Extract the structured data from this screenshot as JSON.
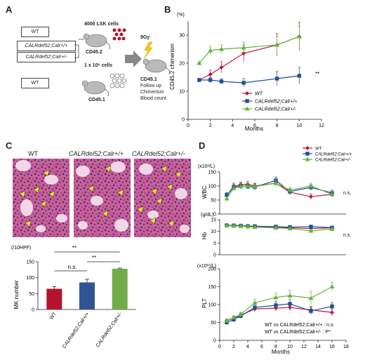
{
  "panels": {
    "a": {
      "letter": "A"
    },
    "b": {
      "letter": "B"
    },
    "c": {
      "letter": "C"
    },
    "d": {
      "letter": "D"
    }
  },
  "schematic": {
    "wt_top": "WT",
    "genotype_wt_pos": "CALRdel52;Calr+/+",
    "genotype_wt_het": "CALRdel52;Calr+/-",
    "lsk_cells": "4000 LSK cells",
    "donor_label": "CD45.2",
    "wt_bottom": "WT",
    "bm_cells": "1 x 10⁶ cells",
    "competitor_label": "CD45.1",
    "irradiation": "9Gy",
    "recipient_label": "CD45.1",
    "followup_lines": [
      "Follow up",
      "Chimerism",
      "Blood count"
    ]
  },
  "chimerism": {
    "unit": "(%)",
    "ylabel": "CD45.2 chimerism",
    "xlabel": "Months",
    "significance": "**"
  },
  "histology": {
    "titles": [
      "WT",
      "CALRdel52;Calr+/+",
      "CALRdel52;Calr+/-"
    ]
  },
  "mk_chart": {
    "unit": "(/10HPF)",
    "ylabel": "MK number",
    "sig_ns": "n.s.",
    "sig_1": "**",
    "sig_2": "**"
  },
  "blood_counts": {
    "xlabel": "Months",
    "wbc_unit": "(x10³/L)",
    "wbc_label": "WBC",
    "wbc_sig": "n.s.",
    "hb_unit": "(g/dL)",
    "hb_label": "Hb",
    "hb_sig": "n.s.",
    "plt_unit": "(x10¹⁰/L)",
    "plt_label": "PLT",
    "stat_line1": "WT vs CALRdel52;Calr+/+ : n.s.",
    "stat_line2": "WT vs CALRdel52;Calr+/- : P*"
  },
  "chart_data": [
    {
      "id": "B",
      "type": "line",
      "xlabel": "Months",
      "ylabel": "CD45.2 chimerism",
      "xlim": [
        0,
        12
      ],
      "ylim": [
        0,
        35
      ],
      "xticks": [
        0,
        2,
        4,
        6,
        8,
        10,
        12
      ],
      "yticks": [
        0,
        10,
        20,
        30
      ],
      "legend_position": "bottom-right",
      "series": [
        {
          "name": "WT",
          "color": "#c0143c",
          "marker": "diamond",
          "x": [
            1,
            2,
            3,
            5,
            8,
            10
          ],
          "values": [
            14,
            16,
            18.5,
            23.5,
            26.5,
            29.5
          ],
          "err": [
            0.5,
            1.5,
            2,
            3,
            4,
            5
          ]
        },
        {
          "name": "CALRdel52;Calr+/+",
          "color": "#1f4e96",
          "marker": "square",
          "x": [
            1,
            2,
            3,
            5,
            8,
            10
          ],
          "values": [
            14,
            14,
            13.5,
            13,
            14.5,
            15.5
          ],
          "err": [
            0.5,
            1,
            1,
            1.5,
            2.5,
            3
          ]
        },
        {
          "name": "CALRdel52;Calr+/-",
          "color": "#5fb53a",
          "marker": "triangle",
          "x": [
            1,
            2,
            3,
            5,
            8,
            10
          ],
          "values": [
            20,
            24.5,
            25,
            25.5,
            26.5,
            29.5
          ],
          "err": [
            0.5,
            1.5,
            1.5,
            2,
            3,
            3.5
          ]
        }
      ]
    },
    {
      "id": "C",
      "type": "bar",
      "ylabel": "MK number",
      "ylim": [
        0,
        150
      ],
      "yticks": [
        0,
        50,
        100,
        150
      ],
      "categories": [
        "WT",
        "CALRdel52;Calr+/+",
        "CALRdel52;Calr+/-"
      ],
      "values": [
        65,
        85,
        128
      ],
      "err": [
        7,
        10,
        2
      ],
      "colors": [
        "#b5122d",
        "#2f5597",
        "#70ad47"
      ]
    },
    {
      "id": "D-WBC",
      "type": "line",
      "ylabel": "WBC",
      "xlim": [
        0,
        18
      ],
      "ylim": [
        0,
        150
      ],
      "yticks": [
        0,
        50,
        100,
        150
      ],
      "series": [
        {
          "name": "WT",
          "color": "#c0143c",
          "marker": "diamond",
          "x": [
            1,
            2,
            3,
            4,
            5,
            8,
            10,
            13,
            16
          ],
          "values": [
            65,
            100,
            104,
            106,
            100,
            110,
            78,
            62,
            70
          ],
          "err": [
            8,
            10,
            10,
            10,
            10,
            12,
            10,
            10,
            10
          ]
        },
        {
          "name": "CALRdel52;Calr+/+",
          "color": "#1f4e96",
          "marker": "square",
          "x": [
            1,
            2,
            3,
            4,
            5,
            8,
            10,
            13,
            16
          ],
          "values": [
            68,
            95,
            100,
            98,
            96,
            120,
            80,
            95,
            75
          ],
          "err": [
            8,
            10,
            10,
            10,
            10,
            12,
            10,
            10,
            10
          ]
        },
        {
          "name": "CALRdel52;Calr+/-",
          "color": "#5fb53a",
          "marker": "triangle",
          "x": [
            1,
            2,
            3,
            4,
            5,
            8,
            10,
            13,
            16
          ],
          "values": [
            55,
            92,
            98,
            100,
            98,
            110,
            85,
            100,
            70
          ],
          "err": [
            8,
            10,
            10,
            10,
            10,
            12,
            10,
            10,
            10
          ]
        }
      ]
    },
    {
      "id": "D-Hb",
      "type": "line",
      "ylabel": "Hb",
      "xlim": [
        0,
        18
      ],
      "ylim": [
        0,
        15
      ],
      "yticks": [
        0,
        5,
        10,
        15
      ],
      "series": [
        {
          "name": "WT",
          "color": "#c0143c",
          "marker": "diamond",
          "x": [
            1,
            2,
            3,
            4,
            5,
            8,
            10,
            13,
            16
          ],
          "values": [
            12.5,
            12.6,
            12.4,
            12.3,
            12.0,
            11.8,
            11.5,
            11.2,
            11.5
          ],
          "err": [
            0.5,
            0.5,
            0.5,
            0.5,
            0.5,
            0.5,
            0.5,
            0.5,
            0.5
          ]
        },
        {
          "name": "CALRdel52;Calr+/+",
          "color": "#1f4e96",
          "marker": "square",
          "x": [
            1,
            2,
            3,
            4,
            5,
            8,
            10,
            13,
            16
          ],
          "values": [
            12.6,
            12.5,
            12.4,
            12.2,
            12.2,
            12.0,
            11.8,
            12.0,
            11.6
          ],
          "err": [
            0.5,
            0.5,
            0.5,
            0.5,
            0.5,
            0.5,
            0.5,
            0.5,
            0.5
          ]
        },
        {
          "name": "CALRdel52;Calr+/-",
          "color": "#5fb53a",
          "marker": "triangle",
          "x": [
            1,
            2,
            3,
            4,
            5,
            8,
            10,
            13,
            16
          ],
          "values": [
            12.4,
            12.3,
            12.2,
            12.0,
            11.8,
            11.5,
            11.2,
            10.2,
            11.0
          ],
          "err": [
            0.5,
            0.5,
            0.5,
            0.5,
            0.5,
            0.5,
            0.5,
            0.8,
            0.5
          ]
        }
      ]
    },
    {
      "id": "D-PLT",
      "type": "line",
      "ylabel": "PLT",
      "xlabel": "Months",
      "xlim": [
        0,
        18
      ],
      "ylim": [
        0,
        200
      ],
      "xticks": [
        0,
        2,
        4,
        6,
        8,
        10,
        12,
        14,
        16,
        18
      ],
      "yticks": [
        0,
        50,
        100,
        150,
        200
      ],
      "series": [
        {
          "name": "WT",
          "color": "#c0143c",
          "marker": "diamond",
          "x": [
            1,
            2,
            3,
            5,
            8,
            10,
            13,
            16
          ],
          "values": [
            55,
            62,
            70,
            88,
            90,
            92,
            85,
            78
          ],
          "err": [
            5,
            5,
            6,
            8,
            8,
            10,
            10,
            10
          ]
        },
        {
          "name": "CALRdel52;Calr+/+",
          "color": "#1f4e96",
          "marker": "square",
          "x": [
            1,
            2,
            3,
            5,
            8,
            10,
            13,
            16
          ],
          "values": [
            50,
            58,
            68,
            92,
            98,
            102,
            82,
            95
          ],
          "err": [
            5,
            5,
            6,
            8,
            10,
            12,
            10,
            10
          ]
        },
        {
          "name": "CALRdel52;Calr+/-",
          "color": "#5fb53a",
          "marker": "triangle",
          "x": [
            1,
            2,
            3,
            5,
            8,
            10,
            13,
            16
          ],
          "values": [
            55,
            64,
            72,
            105,
            120,
            125,
            118,
            150
          ],
          "err": [
            5,
            5,
            6,
            10,
            12,
            15,
            18,
            12
          ]
        }
      ]
    }
  ]
}
